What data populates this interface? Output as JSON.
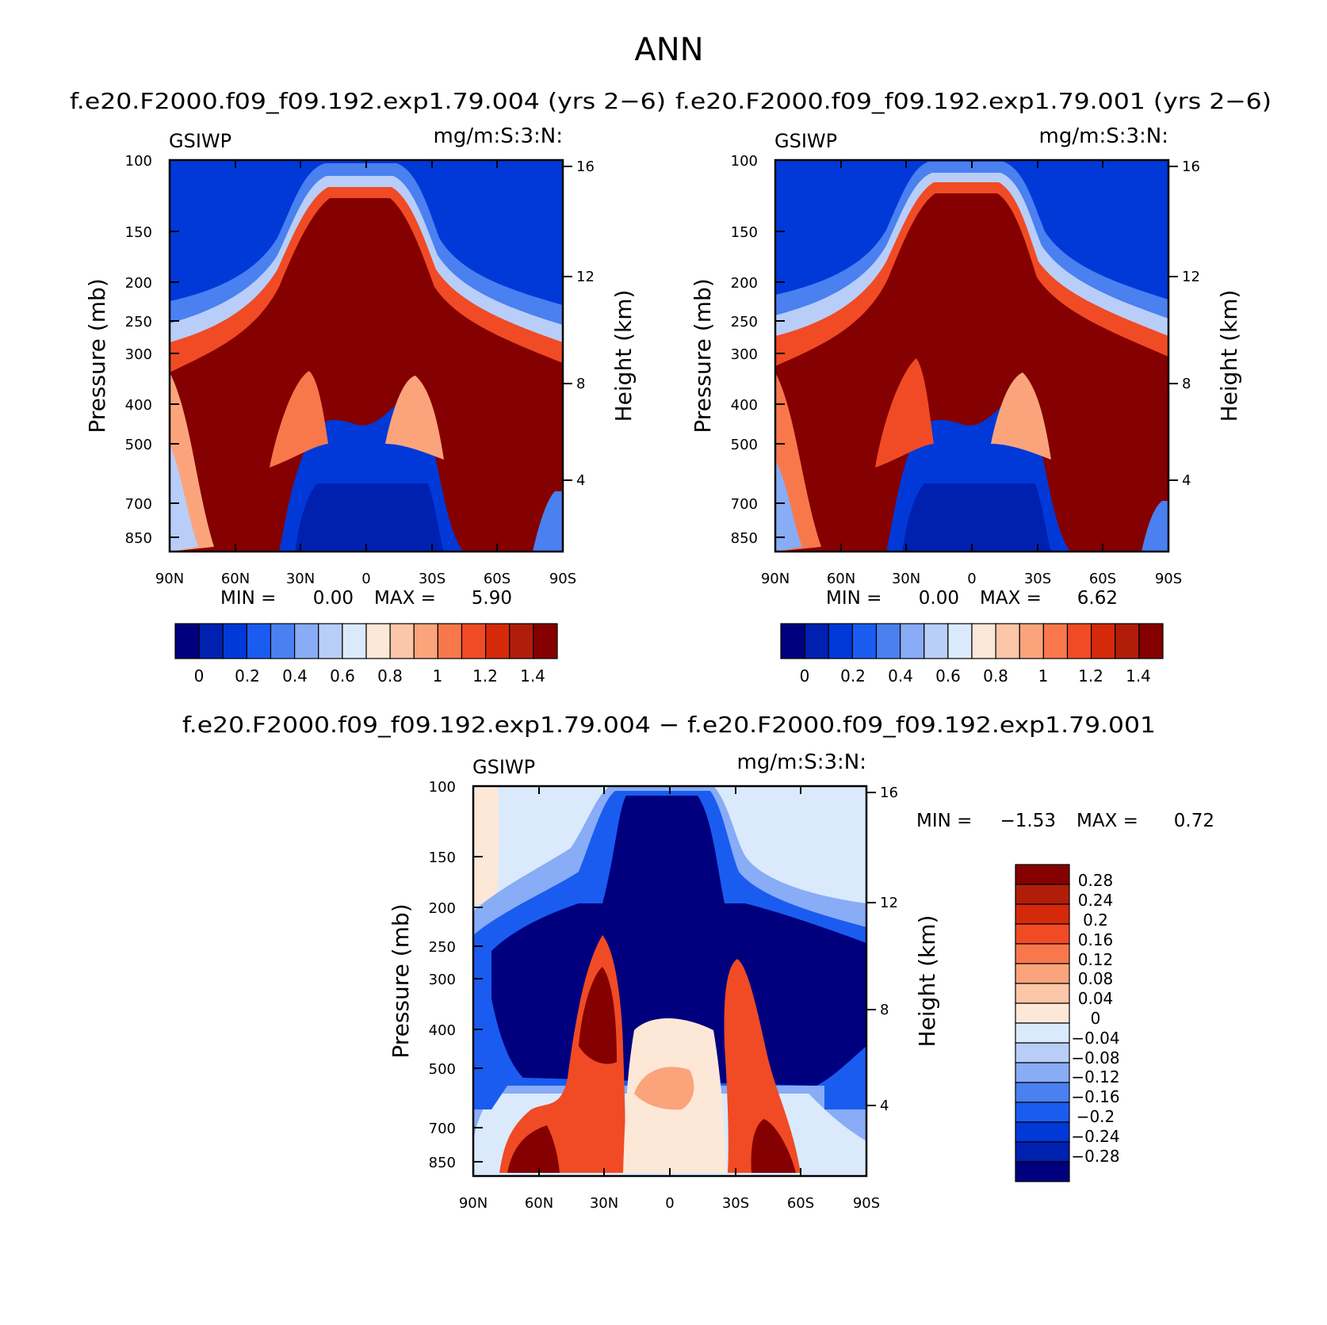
{
  "figure": {
    "title": "ANN"
  },
  "chart_data": [
    {
      "type": "heatmap",
      "title": "f.e20.F2000.f09_f09.192.exp1.79.004 (yrs 2−6)",
      "left_label": "GSIWP",
      "right_label": "mg/m:S:3:N:",
      "xlabel": "",
      "ylabel": "Pressure (mb)",
      "y2label": "Height (km)",
      "x_ticks": [
        "90N",
        "60N",
        "30N",
        "0",
        "30S",
        "60S",
        "90S"
      ],
      "y_ticks": [
        "100",
        "150",
        "200",
        "250",
        "300",
        "400",
        "500",
        "700",
        "850"
      ],
      "y2_ticks": [
        "16",
        "12",
        "8",
        "4"
      ],
      "min_label": "MIN =",
      "min_value": "0.00",
      "max_label": "MAX =",
      "max_value": "5.90",
      "colorbar_labels": [
        "0",
        "0.2",
        "0.4",
        "0.6",
        "0.8",
        "1",
        "1.2",
        "1.4"
      ]
    },
    {
      "type": "heatmap",
      "title": "f.e20.F2000.f09_f09.192.exp1.79.001 (yrs 2−6)",
      "left_label": "GSIWP",
      "right_label": "mg/m:S:3:N:",
      "xlabel": "",
      "ylabel": "Pressure (mb)",
      "y2label": "Height (km)",
      "x_ticks": [
        "90N",
        "60N",
        "30N",
        "0",
        "30S",
        "60S",
        "90S"
      ],
      "y_ticks": [
        "100",
        "150",
        "200",
        "250",
        "300",
        "400",
        "500",
        "700",
        "850"
      ],
      "y2_ticks": [
        "16",
        "12",
        "8",
        "4"
      ],
      "min_label": "MIN =",
      "min_value": "0.00",
      "max_label": "MAX =",
      "max_value": "6.62",
      "colorbar_labels": [
        "0",
        "0.2",
        "0.4",
        "0.6",
        "0.8",
        "1",
        "1.2",
        "1.4"
      ]
    },
    {
      "type": "heatmap",
      "title": "f.e20.F2000.f09_f09.192.exp1.79.004 − f.e20.F2000.f09_f09.192.exp1.79.001",
      "left_label": "GSIWP",
      "right_label": "mg/m:S:3:N:",
      "xlabel": "",
      "ylabel": "Pressure (mb)",
      "y2label": "Height (km)",
      "x_ticks": [
        "90N",
        "60N",
        "30N",
        "0",
        "30S",
        "60S",
        "90S"
      ],
      "y_ticks": [
        "100",
        "150",
        "200",
        "250",
        "300",
        "400",
        "500",
        "700",
        "850"
      ],
      "y2_ticks": [
        "16",
        "12",
        "8",
        "4"
      ],
      "min_label": "MIN =",
      "min_value": "−1.53",
      "max_label": "MAX =",
      "max_value": "0.72",
      "colorbar_labels": [
        "0.28",
        "0.24",
        "0.2",
        "0.16",
        "0.12",
        "0.08",
        "0.04",
        "0",
        "−0.04",
        "−0.08",
        "−0.12",
        "−0.16",
        "−0.2",
        "−0.24",
        "−0.28"
      ]
    }
  ],
  "palette": [
    "#00007f",
    "#0020b0",
    "#0039d8",
    "#1a5cf0",
    "#4a80f0",
    "#88acf5",
    "#b8cef8",
    "#daeafc",
    "#fde8d8",
    "#fcc6a8",
    "#fba47c",
    "#f8784c",
    "#f04b24",
    "#d42a0a",
    "#b01e0a",
    "#850000"
  ]
}
